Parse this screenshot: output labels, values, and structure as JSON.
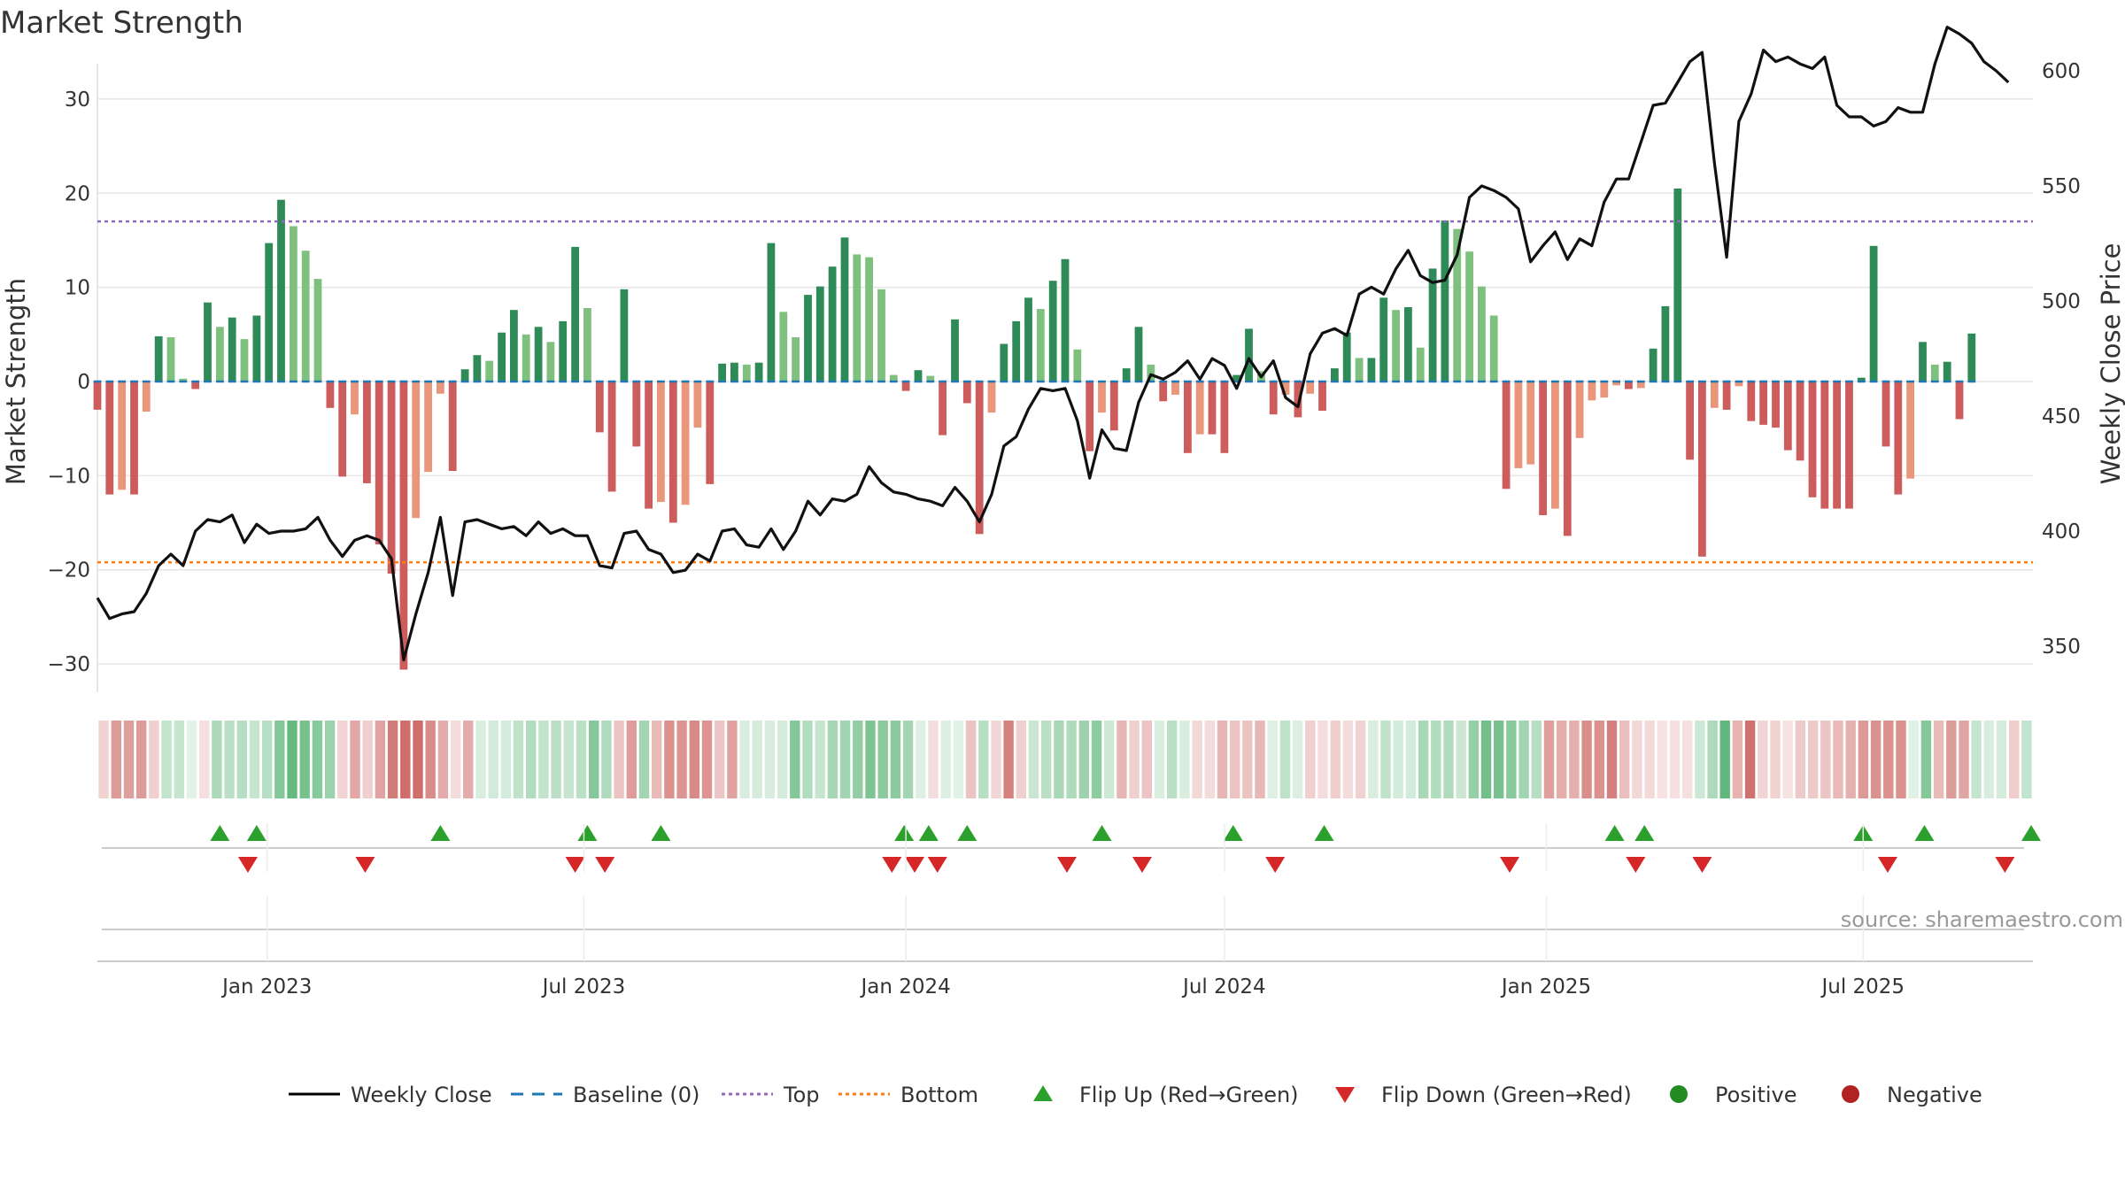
{
  "chart_data": {
    "type": "bar+line",
    "title": "Market Strength",
    "source": "source: sharemaestro.com",
    "y_left_label": "Market Strength",
    "y_right_label": "Weekly Close Price",
    "y_left_ticks": [
      "30",
      "20",
      "10",
      "0",
      "−10",
      "−20",
      "−30"
    ],
    "y_left_tick_values": [
      30,
      20,
      10,
      0,
      -10,
      -20,
      -30
    ],
    "y_right_ticks": [
      "600",
      "550",
      "500",
      "450",
      "400",
      "350"
    ],
    "y_right_tick_values": [
      600,
      550,
      500,
      450,
      400,
      350
    ],
    "ylim_left": [
      -33,
      33
    ],
    "ylim_right": [
      330,
      600
    ],
    "x_range": [
      "2022-09-26",
      "2025-10-06"
    ],
    "x_ticks": [
      {
        "date": "2023-01-01",
        "label": "Jan 2023"
      },
      {
        "date": "2023-07-01",
        "label": "Jul 2023"
      },
      {
        "date": "2024-01-01",
        "label": "Jan 2024"
      },
      {
        "date": "2024-07-01",
        "label": "Jul 2024"
      },
      {
        "date": "2025-01-01",
        "label": "Jan 2025"
      },
      {
        "date": "2025-07-01",
        "label": "Jul 2025"
      }
    ],
    "top_line": 17,
    "bottom_line": -19.2,
    "start_date": "2022-09-26",
    "week_step_days": 7,
    "strength": [
      -3,
      -12,
      -11.5,
      -12,
      -3.2,
      4.8,
      4.7,
      0.3,
      -0.8,
      8.4,
      5.8,
      6.8,
      4.5,
      7,
      14.7,
      19.3,
      16.5,
      13.9,
      10.9,
      -2.8,
      -10.1,
      -3.5,
      -10.8,
      -17.3,
      -20.4,
      -30.6,
      -14.5,
      -9.6,
      -1.3,
      -9.5,
      1.3,
      2.8,
      2.2,
      5.2,
      7.6,
      5,
      5.8,
      4.2,
      6.4,
      14.3,
      7.8,
      -5.4,
      -11.7,
      9.8,
      -6.9,
      -13.5,
      -12.8,
      -15,
      -13.1,
      -4.9,
      -10.9,
      1.9,
      2,
      1.8,
      2,
      14.7,
      7.4,
      4.7,
      9.2,
      10.1,
      12.2,
      15.3,
      13.5,
      13.2,
      9.8,
      0.7,
      -1,
      1.2,
      0.6,
      -5.7,
      6.6,
      -2.3,
      -16.2,
      -3.3,
      4,
      6.4,
      8.9,
      7.7,
      10.7,
      13,
      3.4,
      -7.4,
      -3.3,
      -5.2,
      1.4,
      5.8,
      1.8,
      -2.1,
      -1.4,
      -7.6,
      -5.6,
      -5.6,
      -7.6,
      0.7,
      5.6,
      1.1,
      -3.5,
      -1.4,
      -3.8,
      -1.3,
      -3.1,
      1.4,
      5.2,
      2.5,
      2.5,
      8.9,
      7.6,
      7.9,
      3.6,
      12,
      17.1,
      16.2,
      13.8,
      10.1,
      7,
      -11.4,
      -9.2,
      -8.8,
      -14.2,
      -13.5,
      -16.4,
      -6,
      -2,
      -1.7,
      -0.4,
      -0.8,
      -0.7,
      3.5,
      8,
      20.5,
      -8.3,
      -18.6,
      -2.8,
      -3,
      -0.5,
      -4.2,
      -4.6,
      -4.9,
      -7.3,
      -8.4,
      -12.3,
      -13.5,
      -13.5,
      -13.5,
      0.4,
      14.4,
      -6.9,
      -12,
      -10.3,
      4.2,
      1.8,
      2.1,
      -4,
      5.1
    ],
    "close": [
      371,
      362,
      364,
      365,
      373,
      385,
      390,
      385,
      400,
      405,
      404,
      407,
      395,
      403,
      399,
      400,
      400,
      401,
      406,
      396,
      389,
      396,
      398,
      396,
      388,
      344,
      364,
      382,
      406,
      372,
      404,
      405,
      403,
      401,
      402,
      398,
      404,
      399,
      401,
      398,
      398,
      385,
      384,
      399,
      400,
      392,
      390,
      382,
      383,
      390,
      387,
      400,
      401,
      394,
      393,
      401,
      392,
      400,
      413,
      407,
      414,
      413,
      416,
      428,
      421,
      417,
      416,
      414,
      413,
      411,
      419,
      413,
      404,
      416,
      437,
      441,
      453,
      462,
      461,
      462,
      448,
      423,
      444,
      436,
      435,
      456,
      468,
      466,
      469,
      474,
      466,
      475,
      472,
      462,
      475,
      467,
      474,
      458,
      454,
      477,
      486,
      488,
      485,
      503,
      506,
      503,
      514,
      522,
      511,
      508,
      509,
      520,
      545,
      550,
      548,
      545,
      540,
      517,
      524,
      530,
      518,
      527,
      524,
      543,
      553,
      553,
      569,
      585,
      586,
      595,
      604,
      608,
      560,
      519,
      578,
      590,
      609,
      604,
      606,
      603,
      601,
      606,
      585,
      580,
      580,
      576,
      578,
      584,
      582,
      582,
      603,
      619,
      616,
      612,
      604,
      600,
      595
    ]
  },
  "heat_strip_note": "",
  "flip_up_dates": [
    "2022-12-05",
    "2022-12-26",
    "2023-04-10",
    "2023-07-03",
    "2023-08-14",
    "2023-12-31",
    "2024-01-14",
    "2024-02-05",
    "2024-04-22",
    "2024-07-06",
    "2024-08-27",
    "2025-02-09",
    "2025-02-26",
    "2025-07-01",
    "2025-08-05",
    "2025-10-05"
  ],
  "flip_down_dates": [
    "2022-12-21",
    "2023-02-26",
    "2023-06-26",
    "2023-07-13",
    "2023-12-24",
    "2024-01-06",
    "2024-01-19",
    "2024-04-02",
    "2024-05-15",
    "2024-07-30",
    "2024-12-11",
    "2025-02-21",
    "2025-03-31",
    "2025-07-15",
    "2025-09-20"
  ],
  "legend": [
    {
      "label": "Weekly Close",
      "kind": "solid-line",
      "color": "#000000"
    },
    {
      "label": "Baseline (0)",
      "kind": "dashed-line",
      "color": "#1f77b4"
    },
    {
      "label": "Top",
      "kind": "dotted-line",
      "color": "#9467bd"
    },
    {
      "label": "Bottom",
      "kind": "dotted-line",
      "color": "#ff7f0e"
    },
    {
      "label": "Flip Up (Red→Green)",
      "kind": "up-triangle",
      "color": "#2ca02c"
    },
    {
      "label": "Flip Down (Green→Red)",
      "kind": "down-triangle",
      "color": "#d62728"
    },
    {
      "label": "Positive",
      "kind": "circle",
      "color": "#228b22"
    },
    {
      "label": "Negative",
      "kind": "circle",
      "color": "#b22222"
    }
  ],
  "colors": {
    "pos_strong": "#2e8b57",
    "pos_weak": "#7fc07f",
    "neg_strong": "#cd5c5c",
    "neg_weak": "#e9967a",
    "baseline": "#1f77b4",
    "top": "#9467bd",
    "bottom": "#ff7f0e",
    "close": "#111111"
  }
}
